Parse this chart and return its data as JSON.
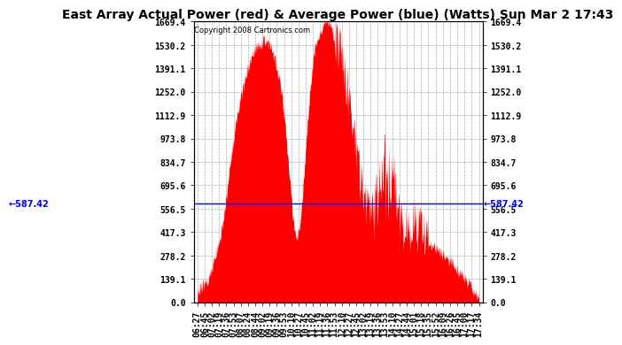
{
  "title": "East Array Actual Power (red) & Average Power (blue) (Watts) Sun Mar 2 17:43",
  "copyright": "Copyright 2008 Cartronics.com",
  "average_power": 587.42,
  "y_max": 1669.4,
  "y_ticks": [
    0.0,
    139.1,
    278.2,
    417.3,
    556.5,
    695.6,
    834.7,
    973.8,
    1112.9,
    1252.0,
    1391.1,
    1530.2,
    1669.4
  ],
  "x_labels": [
    "06:27",
    "06:45",
    "07:02",
    "07:19",
    "07:36",
    "07:53",
    "08:07",
    "08:24",
    "08:44",
    "09:02",
    "09:19",
    "09:36",
    "09:53",
    "10:10",
    "10:27",
    "10:45",
    "11:02",
    "11:19",
    "11:36",
    "11:53",
    "12:10",
    "12:27",
    "12:45",
    "13:02",
    "13:19",
    "13:36",
    "13:53",
    "14:10",
    "14:27",
    "14:44",
    "15:01",
    "15:18",
    "15:35",
    "15:52",
    "16:09",
    "16:26",
    "16:45",
    "17:00",
    "17:17",
    "17:34"
  ],
  "background_color": "#ffffff",
  "fill_color": "#ff0000",
  "line_color": "#0000ff",
  "grid_color": "#aaaaaa",
  "title_fontsize": 10,
  "tick_fontsize": 7,
  "curve_x": [
    0,
    1,
    2,
    3,
    4,
    5,
    6,
    7,
    8,
    9,
    10,
    11,
    12,
    13,
    14,
    15,
    16,
    17,
    18,
    19,
    20,
    21,
    22,
    23,
    24,
    25,
    26,
    27,
    28,
    29,
    30,
    31,
    32,
    33,
    34,
    35,
    36,
    37,
    38,
    39
  ],
  "curve_y": [
    50,
    100,
    180,
    350,
    620,
    950,
    1200,
    1380,
    1500,
    1540,
    1520,
    1380,
    1100,
    600,
    400,
    900,
    1420,
    1600,
    1669,
    1560,
    1380,
    1150,
    850,
    560,
    480,
    430,
    520,
    480,
    450,
    360,
    400,
    380,
    350,
    310,
    270,
    230,
    180,
    130,
    70,
    20
  ]
}
